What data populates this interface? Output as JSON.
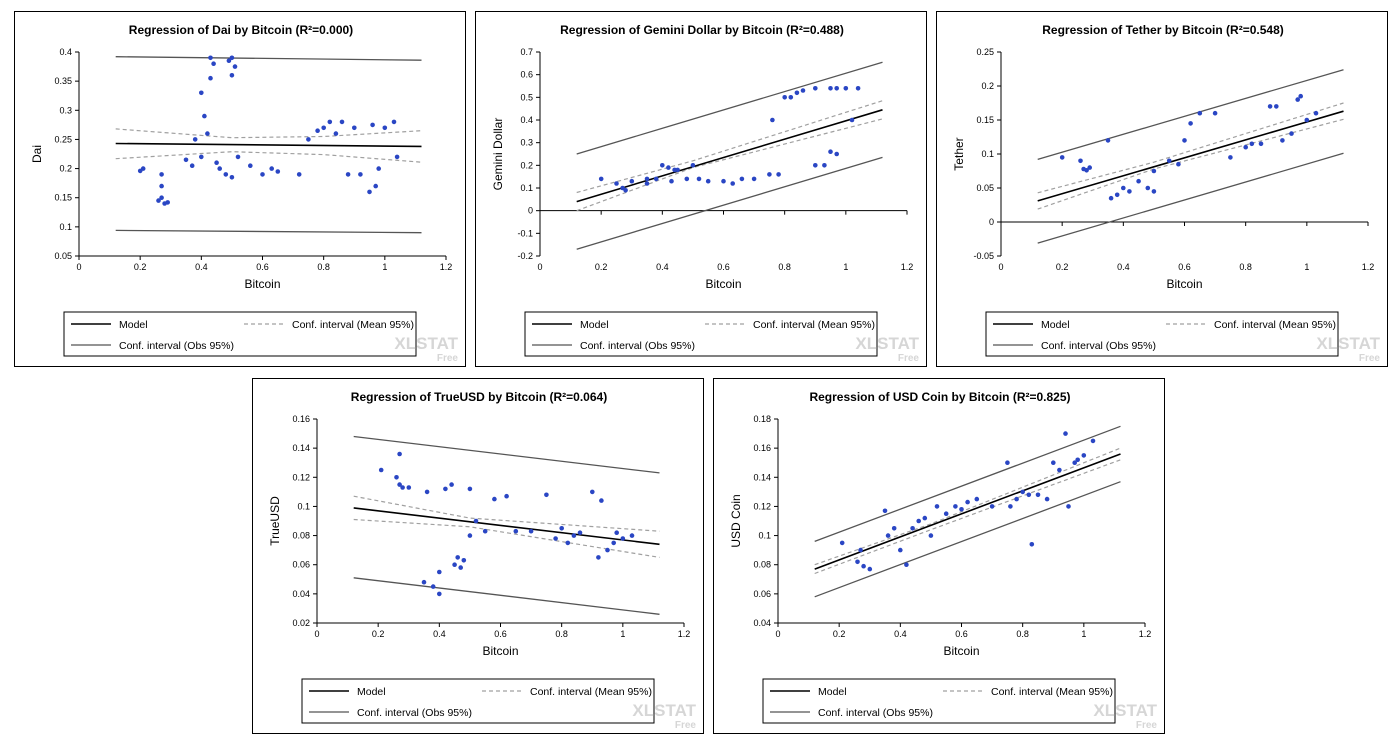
{
  "legend": {
    "model": "Model",
    "mean_ci": "Conf. interval (Mean 95%)",
    "obs_ci": "Conf. interval (Obs 95%)"
  },
  "watermark": {
    "brand": "XLSTAT",
    "tier": "Free"
  },
  "colors": {
    "points": "#2a46c4",
    "model": "#000000",
    "mean_ci": "#a0a0a0",
    "obs_ci": "#555555"
  },
  "chart_data": [
    {
      "type": "scatter",
      "title": "Regression of Dai by Bitcoin (R²=0.000)",
      "xlabel": "Bitcoin",
      "ylabel": "Dai",
      "xlim": [
        0,
        1.2
      ],
      "xticks": [
        0,
        0.2,
        0.4,
        0.6,
        0.8,
        1,
        1.2
      ],
      "xtick_labels": [
        "0",
        "0.2",
        "0.4",
        "0.6",
        "0.8",
        "1",
        "1.2"
      ],
      "ylim": [
        0.05,
        0.4
      ],
      "yticks": [
        0.05,
        0.1,
        0.15,
        0.2,
        0.25,
        0.3,
        0.35,
        0.4
      ],
      "ytick_labels": [
        "0.05",
        "0.1",
        "0.15",
        "0.2",
        "0.25",
        "0.3",
        "0.35",
        "0.4"
      ],
      "model_line": [
        [
          0.12,
          0.243
        ],
        [
          1.12,
          0.238
        ]
      ],
      "mean_ci_upper": [
        [
          0.12,
          0.268
        ],
        [
          0.5,
          0.253
        ],
        [
          0.8,
          0.255
        ],
        [
          1.12,
          0.265
        ]
      ],
      "mean_ci_lower": [
        [
          0.12,
          0.217
        ],
        [
          0.5,
          0.229
        ],
        [
          0.8,
          0.224
        ],
        [
          1.12,
          0.211
        ]
      ],
      "obs_ci_upper": [
        [
          0.12,
          0.392
        ],
        [
          1.12,
          0.386
        ]
      ],
      "obs_ci_lower": [
        [
          0.12,
          0.094
        ],
        [
          1.12,
          0.09
        ]
      ],
      "points": [
        [
          0.2,
          0.196
        ],
        [
          0.21,
          0.2
        ],
        [
          0.26,
          0.145
        ],
        [
          0.27,
          0.19
        ],
        [
          0.28,
          0.14
        ],
        [
          0.27,
          0.17
        ],
        [
          0.29,
          0.142
        ],
        [
          0.27,
          0.15
        ],
        [
          0.35,
          0.215
        ],
        [
          0.37,
          0.205
        ],
        [
          0.38,
          0.25
        ],
        [
          0.4,
          0.33
        ],
        [
          0.41,
          0.29
        ],
        [
          0.42,
          0.26
        ],
        [
          0.43,
          0.355
        ],
        [
          0.44,
          0.38
        ],
        [
          0.43,
          0.39
        ],
        [
          0.4,
          0.22
        ],
        [
          0.45,
          0.21
        ],
        [
          0.46,
          0.2
        ],
        [
          0.48,
          0.19
        ],
        [
          0.49,
          0.385
        ],
        [
          0.5,
          0.39
        ],
        [
          0.51,
          0.375
        ],
        [
          0.5,
          0.36
        ],
        [
          0.5,
          0.185
        ],
        [
          0.52,
          0.22
        ],
        [
          0.56,
          0.205
        ],
        [
          0.6,
          0.19
        ],
        [
          0.63,
          0.2
        ],
        [
          0.65,
          0.195
        ],
        [
          0.72,
          0.19
        ],
        [
          0.75,
          0.25
        ],
        [
          0.78,
          0.265
        ],
        [
          0.8,
          0.27
        ],
        [
          0.82,
          0.28
        ],
        [
          0.84,
          0.26
        ],
        [
          0.86,
          0.28
        ],
        [
          0.9,
          0.27
        ],
        [
          0.88,
          0.19
        ],
        [
          0.92,
          0.19
        ],
        [
          0.95,
          0.16
        ],
        [
          0.97,
          0.17
        ],
        [
          0.98,
          0.2
        ],
        [
          1.0,
          0.27
        ],
        [
          1.04,
          0.22
        ],
        [
          1.03,
          0.28
        ],
        [
          0.96,
          0.275
        ]
      ]
    },
    {
      "type": "scatter",
      "title": "Regression of Gemini Dollar by Bitcoin (R²=0.488)",
      "xlabel": "Bitcoin",
      "ylabel": "Gemini Dollar",
      "xlim": [
        0,
        1.2
      ],
      "xticks": [
        0,
        0.2,
        0.4,
        0.6,
        0.8,
        1,
        1.2
      ],
      "xtick_labels": [
        "0",
        "0.2",
        "0.4",
        "0.6",
        "0.8",
        "1",
        "1.2"
      ],
      "ylim": [
        -0.2,
        0.7
      ],
      "yticks": [
        -0.2,
        -0.1,
        0,
        0.1,
        0.2,
        0.3,
        0.4,
        0.5,
        0.6,
        0.7
      ],
      "ytick_labels": [
        "-0.2",
        "-0.1",
        "0",
        "0.1",
        "0.2",
        "0.3",
        "0.4",
        "0.5",
        "0.6",
        "0.7"
      ],
      "model_line": [
        [
          0.12,
          0.04
        ],
        [
          1.12,
          0.445
        ]
      ],
      "mean_ci_upper": [
        [
          0.12,
          0.08
        ],
        [
          0.5,
          0.22
        ],
        [
          1.12,
          0.485
        ]
      ],
      "mean_ci_lower": [
        [
          0.12,
          0.0
        ],
        [
          0.5,
          0.19
        ],
        [
          1.12,
          0.405
        ]
      ],
      "obs_ci_upper": [
        [
          0.12,
          0.25
        ],
        [
          1.12,
          0.655
        ]
      ],
      "obs_ci_lower": [
        [
          0.12,
          -0.17
        ],
        [
          1.12,
          0.235
        ]
      ],
      "points": [
        [
          0.2,
          0.14
        ],
        [
          0.25,
          0.12
        ],
        [
          0.27,
          0.1
        ],
        [
          0.28,
          0.09
        ],
        [
          0.3,
          0.13
        ],
        [
          0.35,
          0.14
        ],
        [
          0.38,
          0.14
        ],
        [
          0.4,
          0.2
        ],
        [
          0.42,
          0.19
        ],
        [
          0.45,
          0.18
        ],
        [
          0.43,
          0.13
        ],
        [
          0.48,
          0.14
        ],
        [
          0.5,
          0.2
        ],
        [
          0.52,
          0.14
        ],
        [
          0.55,
          0.13
        ],
        [
          0.6,
          0.13
        ],
        [
          0.63,
          0.12
        ],
        [
          0.66,
          0.14
        ],
        [
          0.7,
          0.14
        ],
        [
          0.75,
          0.16
        ],
        [
          0.76,
          0.4
        ],
        [
          0.78,
          0.16
        ],
        [
          0.8,
          0.5
        ],
        [
          0.82,
          0.5
        ],
        [
          0.84,
          0.52
        ],
        [
          0.86,
          0.53
        ],
        [
          0.9,
          0.54
        ],
        [
          0.95,
          0.54
        ],
        [
          0.97,
          0.54
        ],
        [
          1.0,
          0.54
        ],
        [
          0.9,
          0.2
        ],
        [
          0.93,
          0.2
        ],
        [
          0.95,
          0.26
        ],
        [
          0.97,
          0.25
        ],
        [
          1.02,
          0.4
        ],
        [
          1.04,
          0.54
        ],
        [
          0.35,
          0.12
        ],
        [
          0.44,
          0.18
        ]
      ]
    },
    {
      "type": "scatter",
      "title": "Regression of Tether by Bitcoin (R²=0.548)",
      "xlabel": "Bitcoin",
      "ylabel": "Tether",
      "xlim": [
        0,
        1.2
      ],
      "xticks": [
        0,
        0.2,
        0.4,
        0.6,
        0.8,
        1,
        1.2
      ],
      "xtick_labels": [
        "0",
        "0.2",
        "0.4",
        "0.6",
        "0.8",
        "1",
        "1.2"
      ],
      "ylim": [
        -0.05,
        0.25
      ],
      "yticks": [
        -0.05,
        0,
        0.05,
        0.1,
        0.15,
        0.2,
        0.25
      ],
      "ytick_labels": [
        "-0.05",
        "0",
        "0.05",
        "0.1",
        "0.15",
        "0.2",
        "0.25"
      ],
      "model_line": [
        [
          0.12,
          0.031
        ],
        [
          1.12,
          0.163
        ]
      ],
      "mean_ci_upper": [
        [
          0.12,
          0.043
        ],
        [
          0.5,
          0.088
        ],
        [
          1.12,
          0.175
        ]
      ],
      "mean_ci_lower": [
        [
          0.12,
          0.019
        ],
        [
          0.5,
          0.078
        ],
        [
          1.12,
          0.151
        ]
      ],
      "obs_ci_upper": [
        [
          0.12,
          0.092
        ],
        [
          1.12,
          0.224
        ]
      ],
      "obs_ci_lower": [
        [
          0.12,
          -0.031
        ],
        [
          1.12,
          0.101
        ]
      ],
      "points": [
        [
          0.2,
          0.095
        ],
        [
          0.26,
          0.09
        ],
        [
          0.27,
          0.078
        ],
        [
          0.28,
          0.076
        ],
        [
          0.29,
          0.08
        ],
        [
          0.35,
          0.12
        ],
        [
          0.36,
          0.035
        ],
        [
          0.38,
          0.04
        ],
        [
          0.4,
          0.05
        ],
        [
          0.42,
          0.045
        ],
        [
          0.45,
          0.06
        ],
        [
          0.48,
          0.05
        ],
        [
          0.5,
          0.045
        ],
        [
          0.5,
          0.075
        ],
        [
          0.55,
          0.09
        ],
        [
          0.58,
          0.085
        ],
        [
          0.6,
          0.12
        ],
        [
          0.62,
          0.145
        ],
        [
          0.65,
          0.16
        ],
        [
          0.7,
          0.16
        ],
        [
          0.75,
          0.095
        ],
        [
          0.8,
          0.11
        ],
        [
          0.82,
          0.115
        ],
        [
          0.85,
          0.115
        ],
        [
          0.88,
          0.17
        ],
        [
          0.9,
          0.17
        ],
        [
          0.92,
          0.12
        ],
        [
          0.95,
          0.13
        ],
        [
          0.97,
          0.18
        ],
        [
          0.98,
          0.185
        ],
        [
          1.0,
          0.15
        ],
        [
          1.03,
          0.16
        ]
      ]
    },
    {
      "type": "scatter",
      "title": "Regression of TrueUSD by Bitcoin (R²=0.064)",
      "xlabel": "Bitcoin",
      "ylabel": "TrueUSD",
      "xlim": [
        0,
        1.2
      ],
      "xticks": [
        0,
        0.2,
        0.4,
        0.6,
        0.8,
        1,
        1.2
      ],
      "xtick_labels": [
        "0",
        "0.2",
        "0.4",
        "0.6",
        "0.8",
        "1",
        "1.2"
      ],
      "ylim": [
        0.02,
        0.16
      ],
      "yticks": [
        0.02,
        0.04,
        0.06,
        0.08,
        0.1,
        0.12,
        0.14,
        0.16
      ],
      "ytick_labels": [
        "0.02",
        "0.04",
        "0.06",
        "0.08",
        "0.1",
        "0.12",
        "0.14",
        "0.16"
      ],
      "model_line": [
        [
          0.12,
          0.099
        ],
        [
          1.12,
          0.074
        ]
      ],
      "mean_ci_upper": [
        [
          0.12,
          0.107
        ],
        [
          0.5,
          0.092
        ],
        [
          1.12,
          0.083
        ]
      ],
      "mean_ci_lower": [
        [
          0.12,
          0.091
        ],
        [
          0.5,
          0.086
        ],
        [
          1.12,
          0.065
        ]
      ],
      "obs_ci_upper": [
        [
          0.12,
          0.148
        ],
        [
          1.12,
          0.123
        ]
      ],
      "obs_ci_lower": [
        [
          0.12,
          0.051
        ],
        [
          1.12,
          0.026
        ]
      ],
      "points": [
        [
          0.21,
          0.125
        ],
        [
          0.26,
          0.12
        ],
        [
          0.27,
          0.136
        ],
        [
          0.27,
          0.115
        ],
        [
          0.28,
          0.113
        ],
        [
          0.3,
          0.113
        ],
        [
          0.35,
          0.048
        ],
        [
          0.36,
          0.11
        ],
        [
          0.38,
          0.045
        ],
        [
          0.4,
          0.055
        ],
        [
          0.4,
          0.04
        ],
        [
          0.42,
          0.112
        ],
        [
          0.44,
          0.115
        ],
        [
          0.45,
          0.06
        ],
        [
          0.46,
          0.065
        ],
        [
          0.47,
          0.058
        ],
        [
          0.48,
          0.063
        ],
        [
          0.5,
          0.08
        ],
        [
          0.5,
          0.112
        ],
        [
          0.52,
          0.09
        ],
        [
          0.55,
          0.083
        ],
        [
          0.58,
          0.105
        ],
        [
          0.62,
          0.107
        ],
        [
          0.65,
          0.083
        ],
        [
          0.7,
          0.083
        ],
        [
          0.75,
          0.108
        ],
        [
          0.78,
          0.078
        ],
        [
          0.8,
          0.085
        ],
        [
          0.82,
          0.075
        ],
        [
          0.84,
          0.08
        ],
        [
          0.86,
          0.082
        ],
        [
          0.9,
          0.11
        ],
        [
          0.93,
          0.104
        ],
        [
          0.95,
          0.07
        ],
        [
          0.97,
          0.075
        ],
        [
          0.98,
          0.082
        ],
        [
          1.0,
          0.078
        ],
        [
          1.03,
          0.08
        ],
        [
          0.92,
          0.065
        ]
      ]
    },
    {
      "type": "scatter",
      "title": "Regression of USD Coin by Bitcoin (R²=0.825)",
      "xlabel": "Bitcoin",
      "ylabel": "USD Coin",
      "xlim": [
        0,
        1.2
      ],
      "xticks": [
        0,
        0.2,
        0.4,
        0.6,
        0.8,
        1,
        1.2
      ],
      "xtick_labels": [
        "0",
        "0.2",
        "0.4",
        "0.6",
        "0.8",
        "1",
        "1.2"
      ],
      "ylim": [
        0.04,
        0.18
      ],
      "yticks": [
        0.04,
        0.06,
        0.08,
        0.1,
        0.12,
        0.14,
        0.16,
        0.18
      ],
      "ytick_labels": [
        "0.04",
        "0.06",
        "0.08",
        "0.1",
        "0.12",
        "0.14",
        "0.16",
        "0.18"
      ],
      "model_line": [
        [
          0.12,
          0.077
        ],
        [
          1.12,
          0.156
        ]
      ],
      "mean_ci_upper": [
        [
          0.12,
          0.08
        ],
        [
          0.5,
          0.108
        ],
        [
          1.12,
          0.16
        ]
      ],
      "mean_ci_lower": [
        [
          0.12,
          0.074
        ],
        [
          0.5,
          0.104
        ],
        [
          1.12,
          0.152
        ]
      ],
      "obs_ci_upper": [
        [
          0.12,
          0.096
        ],
        [
          1.12,
          0.175
        ]
      ],
      "obs_ci_lower": [
        [
          0.12,
          0.058
        ],
        [
          1.12,
          0.137
        ]
      ],
      "points": [
        [
          0.21,
          0.095
        ],
        [
          0.26,
          0.082
        ],
        [
          0.27,
          0.09
        ],
        [
          0.28,
          0.079
        ],
        [
          0.3,
          0.077
        ],
        [
          0.35,
          0.117
        ],
        [
          0.36,
          0.1
        ],
        [
          0.38,
          0.105
        ],
        [
          0.4,
          0.09
        ],
        [
          0.42,
          0.08
        ],
        [
          0.44,
          0.105
        ],
        [
          0.46,
          0.11
        ],
        [
          0.48,
          0.112
        ],
        [
          0.5,
          0.1
        ],
        [
          0.52,
          0.12
        ],
        [
          0.55,
          0.115
        ],
        [
          0.58,
          0.12
        ],
        [
          0.6,
          0.118
        ],
        [
          0.62,
          0.123
        ],
        [
          0.65,
          0.125
        ],
        [
          0.7,
          0.12
        ],
        [
          0.75,
          0.15
        ],
        [
          0.76,
          0.12
        ],
        [
          0.78,
          0.125
        ],
        [
          0.8,
          0.13
        ],
        [
          0.82,
          0.128
        ],
        [
          0.83,
          0.094
        ],
        [
          0.85,
          0.128
        ],
        [
          0.88,
          0.125
        ],
        [
          0.9,
          0.15
        ],
        [
          0.92,
          0.145
        ],
        [
          0.94,
          0.17
        ],
        [
          0.95,
          0.12
        ],
        [
          0.97,
          0.15
        ],
        [
          1.0,
          0.155
        ],
        [
          1.03,
          0.165
        ],
        [
          0.98,
          0.152
        ]
      ]
    }
  ]
}
